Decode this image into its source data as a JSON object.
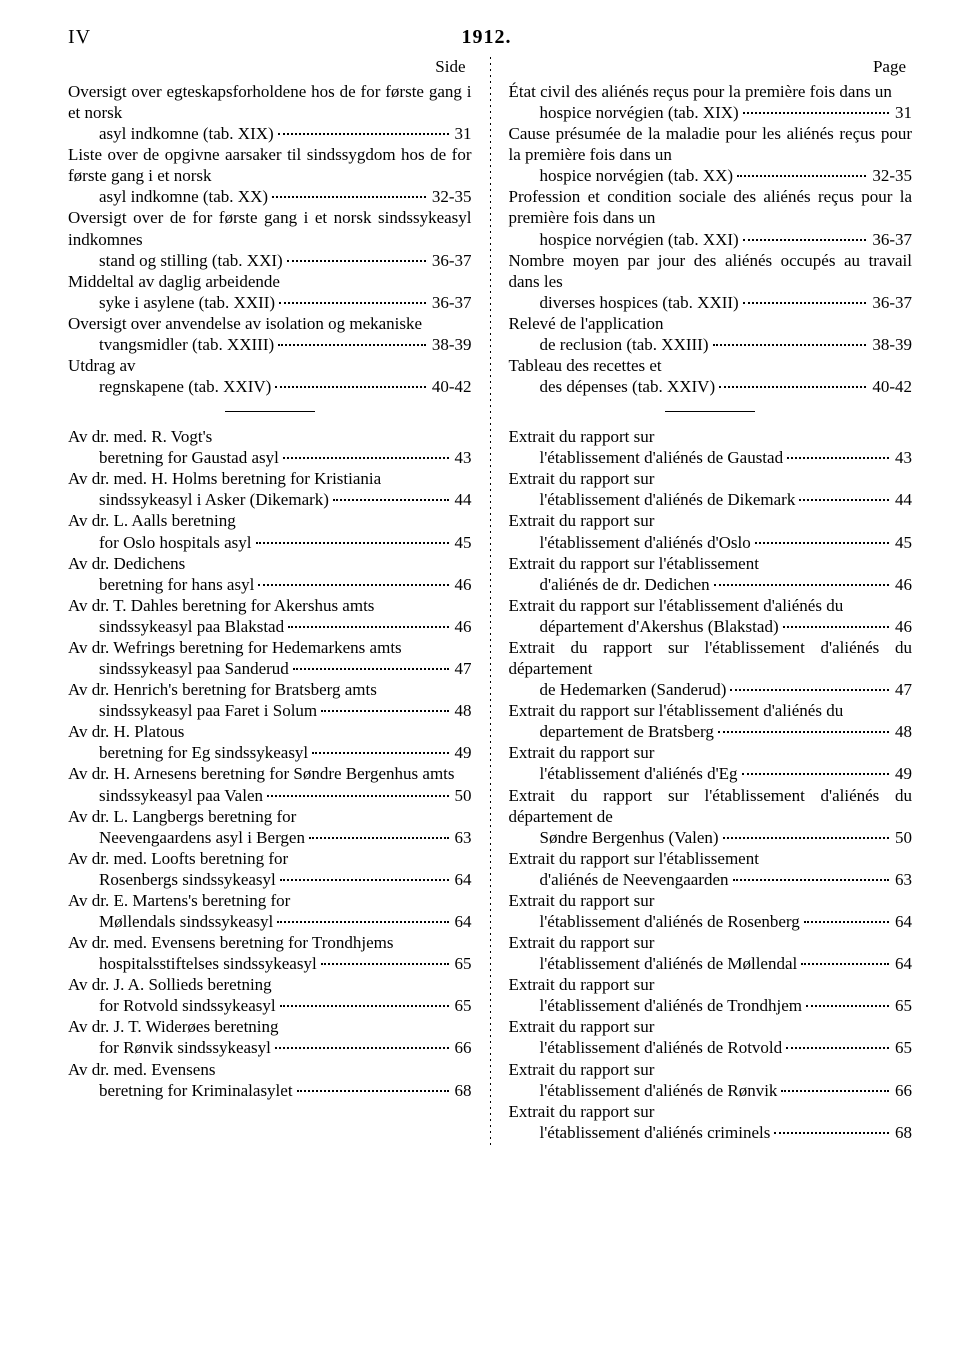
{
  "header": {
    "left": "IV",
    "center": "1912."
  },
  "colHeaders": {
    "left": "Side",
    "right": "Page"
  },
  "left": {
    "top": [
      {
        "text": "Oversigt over egteskapsforholdene hos de for første gang i et norsk asyl indkomne (tab. XIX)",
        "page": "31"
      },
      {
        "text": "Liste over de opgivne aarsaker til sindssygdom hos de for første gang i et norsk asyl indkomne (tab. XX)",
        "page": "32-35"
      },
      {
        "text": "Oversigt over de for første gang i et norsk sindssykeasyl indkomnes stand og stilling (tab. XXI)",
        "page": "36-37"
      },
      {
        "text": "Middeltal av daglig arbeidende syke i asylene (tab. XXII)",
        "page": "36-37"
      },
      {
        "text": "Oversigt over anvendelse av isolation og mekaniske tvangsmidler (tab. XXIII)",
        "page": "38-39"
      },
      {
        "text": "Utdrag av regnskapene (tab. XXIV)",
        "page": "40-42"
      }
    ],
    "bottom": [
      {
        "text": "Av dr. med. R. Vogt's beretning for Gaustad asyl",
        "page": "43"
      },
      {
        "text": "Av dr. med. H. Holms beretning for Kristiania sindssykeasyl i Asker (Dikemark)",
        "page": "44"
      },
      {
        "text": "Av dr. L. Aalls beretning for Oslo hospitals asyl",
        "page": "45"
      },
      {
        "text": "Av dr. Dedichens beretning for hans asyl",
        "page": "46"
      },
      {
        "text": "Av dr. T. Dahles beretning for Akershus amts sindssykeasyl paa Blakstad",
        "page": "46"
      },
      {
        "text": "Av dr. Wefrings beretning for Hedemarkens amts sindssykeasyl paa Sanderud",
        "page": "47"
      },
      {
        "text": "Av dr. Henrich's beretning for Bratsberg amts sindssykeasyl paa Faret i Solum",
        "page": "48"
      },
      {
        "text": "Av dr. H. Platous beretning for Eg sindssykeasyl",
        "page": "49"
      },
      {
        "text": "Av dr. H. Arnesens beretning for Søndre Bergenhus amts sindssykeasyl paa Valen",
        "page": "50"
      },
      {
        "text": "Av dr. L. Langbergs beretning for Neevengaardens asyl i Bergen",
        "page": "63"
      },
      {
        "text": "Av dr. med. Loofts beretning for Rosenbergs sindssykeasyl",
        "page": "64"
      },
      {
        "text": "Av dr. E. Martens's beretning for Møllendals sindssykeasyl",
        "page": "64"
      },
      {
        "text": "Av dr. med. Evensens beretning for Trondhjems hospitalsstiftelses sindssykeasyl",
        "page": "65"
      },
      {
        "text": "Av dr. J. A. Sollieds beretning for Rotvold sindssykeasyl",
        "page": "65"
      },
      {
        "text": "Av dr. J. T. Widerøes beretning for Rønvik sindssykeasyl",
        "page": "66"
      },
      {
        "text": "Av dr. med. Evensens beretning for Kriminalasylet",
        "page": "68"
      }
    ]
  },
  "right": {
    "top": [
      {
        "text": "État civil des aliénés reçus pour la première fois dans un hospice norvégien (tab. XIX)",
        "page": "31"
      },
      {
        "text": "Cause présumée de la maladie pour les aliénés reçus pour la première fois dans un hospice norvégien (tab. XX)",
        "page": "32-35"
      },
      {
        "text": "Profession et condition sociale des aliénés reçus pour la première fois dans un hospice norvégien (tab. XXI)",
        "page": "36-37"
      },
      {
        "text": "Nombre moyen par jour des aliénés occupés au travail dans les diverses hospices (tab. XXII)",
        "page": "36-37"
      },
      {
        "text": "Relevé de l'application de reclusion (tab. XXIII)",
        "page": "38-39"
      },
      {
        "text": "Tableau des recettes et des dépenses (tab. XXIV)",
        "page": "40-42"
      }
    ],
    "bottom": [
      {
        "text": "Extrait du rapport sur l'établissement d'aliénés de Gaustad",
        "page": "43"
      },
      {
        "text": "Extrait du rapport sur l'établissement d'aliénés de Dikemark",
        "page": "44"
      },
      {
        "text": "Extrait du rapport sur l'établissement d'aliénés d'Oslo",
        "page": "45"
      },
      {
        "text": "Extrait du rapport sur l'établissement d'aliénés de dr. Dedichen",
        "page": "46"
      },
      {
        "text": "Extrait du rapport sur l'établissement d'aliénés du département d'Akershus (Blakstad)",
        "page": "46"
      },
      {
        "text": "Extrait du rapport sur l'établissement d'aliénés du département de Hedemarken (Sanderud)",
        "page": "47"
      },
      {
        "text": "Extrait du rapport sur l'établissement d'aliénés du departement de Bratsberg",
        "page": "48"
      },
      {
        "text": "Extrait du rapport sur l'établissement d'aliénés d'Eg",
        "page": "49"
      },
      {
        "text": "Extrait du rapport sur l'établissement d'aliénés du département de Søndre Bergenhus (Valen)",
        "page": "50"
      },
      {
        "text": "Extrait du rapport sur l'établissement d'aliénés de Neevengaarden",
        "page": "63"
      },
      {
        "text": "Extrait du rapport sur l'établissement d'aliénés de Rosenberg",
        "page": "64"
      },
      {
        "text": "Extrait du rapport sur l'établissement d'aliénés de Møllendal",
        "page": "64"
      },
      {
        "text": "Extrait du rapport sur l'établissement d'aliénés de Trondhjem",
        "page": "65"
      },
      {
        "text": "Extrait du rapport sur l'établissement d'aliénés de Rotvold",
        "page": "65"
      },
      {
        "text": "Extrait du rapport sur l'établissement d'aliénés de Rønvik",
        "page": "66"
      },
      {
        "text": "Extrait du rapport sur l'établissement d'aliénés criminels",
        "page": "68"
      }
    ]
  }
}
